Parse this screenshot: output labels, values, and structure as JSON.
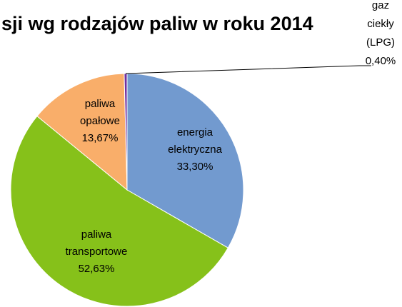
{
  "chart_data": {
    "type": "pie",
    "title": "sji wg rodzajów paliw w roku 2014",
    "categories": [
      "energia elektryczna",
      "paliwa transportowe",
      "paliwa opałowe",
      "gaz ciekły (LPG)"
    ],
    "values": [
      33.3,
      52.63,
      13.67,
      0.4
    ],
    "value_labels": [
      "33,30%",
      "52,63%",
      "13,67%",
      "0,40%"
    ],
    "colors": [
      "#729acf",
      "#86c11a",
      "#f9ae6a",
      "#7030a0"
    ]
  }
}
